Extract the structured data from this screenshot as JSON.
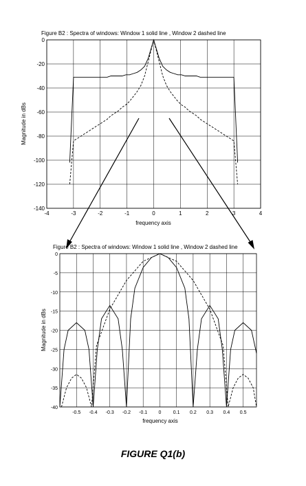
{
  "caption": "FIGURE Q1(b)",
  "chart_data": [
    {
      "type": "line",
      "title": "Figure B2 :   Spectra of windows:  Window 1 solid line  , Window 2 dashed line",
      "xlabel": "frequency axis",
      "ylabel": "Magnitude in dBs",
      "xlim": [
        -4,
        4
      ],
      "ylim": [
        -140,
        0
      ],
      "xticks": [
        -4,
        -3,
        -2,
        -1,
        0,
        1,
        2,
        3,
        4
      ],
      "yticks": [
        0,
        -20,
        -40,
        -60,
        -80,
        -100,
        -120,
        -140
      ],
      "grid": true,
      "series": [
        {
          "style": "solid",
          "x": [
            -3.14,
            -3.0,
            -2.86,
            -2.72,
            -2.58,
            -2.44,
            -2.3,
            -2.16,
            -2.02,
            -1.88,
            -1.74,
            -1.6,
            -1.46,
            -1.32,
            -1.18,
            -1.04,
            -0.9,
            -0.76,
            -0.62,
            -0.48,
            -0.34,
            -0.2,
            0,
            0.2,
            0.34,
            0.48,
            0.62,
            0.76,
            0.9,
            1.04,
            1.18,
            1.32,
            1.46,
            1.6,
            1.74,
            1.88,
            2.02,
            2.16,
            2.3,
            2.44,
            2.58,
            2.72,
            2.86,
            3.0,
            3.14
          ],
          "y": [
            -102,
            -31,
            -31,
            -31,
            -31,
            -31,
            -31,
            -31,
            -31,
            -31,
            -31,
            -30,
            -30,
            -30,
            -30,
            -29,
            -29,
            -28,
            -27,
            -25,
            -22,
            -15,
            0,
            -15,
            -22,
            -25,
            -27,
            -28,
            -29,
            -29,
            -30,
            -30,
            -30,
            -30,
            -31,
            -31,
            -31,
            -31,
            -31,
            -31,
            -31,
            -31,
            -31,
            -31,
            -102
          ]
        },
        {
          "style": "dashed",
          "x": [
            -3.14,
            -3.0,
            -2.86,
            -2.72,
            -2.58,
            -2.44,
            -2.3,
            -2.16,
            -2.02,
            -1.88,
            -1.74,
            -1.6,
            -1.46,
            -1.32,
            -1.18,
            -1.04,
            -0.9,
            -0.76,
            -0.62,
            -0.48,
            -0.34,
            0,
            0.34,
            0.48,
            0.62,
            0.76,
            0.9,
            1.04,
            1.18,
            1.32,
            1.46,
            1.6,
            1.74,
            1.88,
            2.02,
            2.16,
            2.3,
            2.44,
            2.58,
            2.72,
            2.86,
            3.0,
            3.14
          ],
          "y": [
            -120,
            -84,
            -82,
            -80,
            -78,
            -76,
            -74,
            -72,
            -70,
            -68,
            -66,
            -63,
            -61,
            -59,
            -56,
            -54,
            -51,
            -47,
            -43,
            -38,
            -30,
            0,
            -30,
            -38,
            -43,
            -47,
            -51,
            -54,
            -56,
            -59,
            -61,
            -63,
            -66,
            -68,
            -70,
            -72,
            -74,
            -76,
            -78,
            -80,
            -82,
            -84,
            -120
          ]
        }
      ]
    },
    {
      "type": "line",
      "title": "Figure B2 :   Spectra of windows:  Window 1 solid line  , Window 2 dashed line",
      "xlabel": "frequency axis",
      "ylabel": "Magnitude in dBs",
      "xlim": [
        -0.6,
        0.58
      ],
      "ylim": [
        -40,
        0
      ],
      "xticks": [
        -0.5,
        -0.4,
        -0.3,
        -0.2,
        -0.1,
        0,
        0.1,
        0.2,
        0.3,
        0.4,
        0.5
      ],
      "yticks": [
        0,
        -5,
        -10,
        -15,
        -20,
        -25,
        -30,
        -35,
        -40
      ],
      "grid": true,
      "series": [
        {
          "style": "solid",
          "x": [
            -0.6,
            -0.575,
            -0.55,
            -0.5,
            -0.45,
            -0.425,
            -0.4,
            -0.375,
            -0.35,
            -0.3,
            -0.25,
            -0.225,
            -0.2,
            -0.175,
            -0.15,
            -0.1,
            -0.05,
            0,
            0.05,
            0.1,
            0.15,
            0.175,
            0.2,
            0.225,
            0.25,
            0.3,
            0.35,
            0.375,
            0.4,
            0.425,
            0.45,
            0.5,
            0.55,
            0.575,
            0.58
          ],
          "y": [
            -40,
            -25,
            -20,
            -18,
            -20,
            -25,
            -40,
            -25,
            -17,
            -13.5,
            -17,
            -25,
            -40,
            -17,
            -9,
            -3.6,
            -1,
            0,
            -1,
            -3.6,
            -9,
            -17,
            -40,
            -25,
            -17,
            -13.5,
            -17,
            -25,
            -40,
            -25,
            -20,
            -18,
            -20,
            -25,
            -26
          ]
        },
        {
          "style": "dashed",
          "x": [
            -0.59,
            -0.56,
            -0.53,
            -0.5,
            -0.47,
            -0.44,
            -0.41,
            -0.38,
            -0.3,
            -0.2,
            -0.1,
            0,
            0.1,
            0.2,
            0.3,
            0.38,
            0.41,
            0.44,
            0.47,
            0.5,
            0.53,
            0.56,
            0.58
          ],
          "y": [
            -40,
            -35,
            -32.5,
            -31.5,
            -32.5,
            -35,
            -40,
            -24,
            -14.5,
            -7,
            -2,
            0,
            -2,
            -7,
            -14.5,
            -24,
            -40,
            -35,
            -32.5,
            -31.5,
            -32.5,
            -35,
            -40
          ]
        }
      ]
    }
  ]
}
